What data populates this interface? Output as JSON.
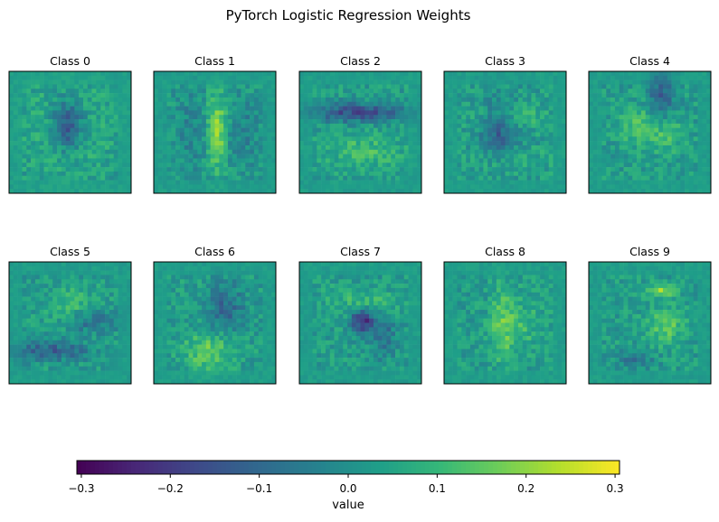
{
  "chart_data": {
    "type": "heatmap",
    "title": "PyTorch Logistic Regression Weights",
    "panels": [
      "Class 0",
      "Class 1",
      "Class 2",
      "Class 3",
      "Class 4",
      "Class 5",
      "Class 6",
      "Class 7",
      "Class 8",
      "Class 9"
    ],
    "grid_size": [
      28,
      28
    ],
    "colormap": "viridis",
    "colorbar": {
      "label": "value",
      "range": [
        -0.305,
        0.305
      ],
      "ticks": [
        "−0.3",
        "−0.2",
        "−0.1",
        "0.0",
        "0.1",
        "0.2",
        "0.3"
      ],
      "tick_values": [
        -0.3,
        -0.2,
        -0.1,
        0.0,
        0.1,
        0.2,
        0.3
      ],
      "orientation": "horizontal",
      "placement": "bottom"
    }
  }
}
